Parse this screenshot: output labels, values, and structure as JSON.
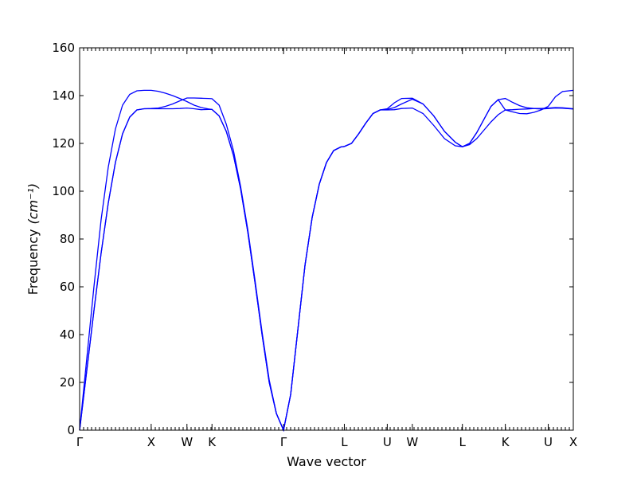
{
  "chart_data": {
    "type": "line",
    "title": "",
    "xlabel": "Wave vector",
    "ylabel": "Frequency",
    "ylabel_unit": "(cm⁻¹)",
    "ylim": [
      0,
      160
    ],
    "yticks": [
      0,
      20,
      40,
      60,
      80,
      100,
      120,
      140,
      160
    ],
    "xlim": [
      0,
      6.9
    ],
    "grid": false,
    "legend": "none",
    "line_color": "#0000ff",
    "high_symmetry_points": [
      {
        "label": "Γ",
        "x": 0.0
      },
      {
        "label": "X",
        "x": 1.0
      },
      {
        "label": "W",
        "x": 1.5
      },
      {
        "label": "K",
        "x": 1.85
      },
      {
        "label": "Γ",
        "x": 2.85
      },
      {
        "label": "L",
        "x": 3.7
      },
      {
        "label": "U",
        "x": 4.3
      },
      {
        "label": "W",
        "x": 4.65
      },
      {
        "label": "L",
        "x": 5.35
      },
      {
        "label": "K",
        "x": 5.95
      },
      {
        "label": "U",
        "x": 6.55
      },
      {
        "label": "X",
        "x": 6.9
      }
    ],
    "series": [
      {
        "x": [
          0,
          0.1,
          0.2,
          0.3,
          0.4,
          0.5,
          0.6,
          0.7,
          0.8,
          0.9,
          1.0,
          1.1,
          1.2,
          1.3,
          1.4,
          1.5,
          1.6,
          1.7,
          1.8,
          1.85,
          1.95,
          2.05,
          2.15,
          2.25,
          2.35,
          2.45,
          2.55,
          2.65,
          2.75,
          2.85,
          2.95,
          3.05,
          3.15,
          3.25,
          3.35,
          3.45,
          3.55,
          3.65,
          3.7,
          3.8,
          3.9,
          4.0,
          4.1,
          4.2,
          4.3,
          4.4,
          4.5,
          4.65,
          4.8,
          4.95,
          5.1,
          5.25,
          5.35,
          5.45,
          5.55,
          5.65,
          5.75,
          5.85,
          5.95,
          6.05,
          6.15,
          6.25,
          6.35,
          6.45,
          6.55,
          6.65,
          6.75,
          6.9
        ],
        "values": [
          0,
          25,
          50,
          74,
          95,
          112,
          124,
          131,
          134,
          134.5,
          134.5,
          134.5,
          134.5,
          134.5,
          134.6,
          134.8,
          134.5,
          134.1,
          134.2,
          134.2,
          131.5,
          125,
          115,
          101,
          83,
          62,
          40,
          20,
          7,
          0,
          15,
          42,
          69,
          89,
          103,
          112,
          117,
          118.5,
          118.7,
          120,
          124,
          128.5,
          132.5,
          134,
          134,
          134.1,
          134.6,
          134.8,
          132.5,
          127.5,
          122,
          119,
          118.6,
          119.5,
          122,
          125.5,
          129,
          132,
          134,
          134.1,
          134.3,
          134.4,
          134.6,
          134.6,
          134.8,
          135,
          134.9,
          134.5
        ]
      },
      {
        "x": [
          0,
          0.1,
          0.2,
          0.3,
          0.4,
          0.5,
          0.6,
          0.7,
          0.8,
          0.9,
          1.0,
          1.1,
          1.2,
          1.3,
          1.4,
          1.5,
          1.6,
          1.7,
          1.8,
          1.85,
          1.95,
          2.05,
          2.15,
          2.25,
          2.35,
          2.45,
          2.55,
          2.65,
          2.75,
          2.85,
          2.95,
          3.05,
          3.15,
          3.25,
          3.35,
          3.45,
          3.55,
          3.65,
          3.7,
          3.8,
          3.9,
          4.0,
          4.1,
          4.2,
          4.3,
          4.4,
          4.5,
          4.65,
          4.8,
          4.95,
          5.1,
          5.25,
          5.35,
          5.45,
          5.55,
          5.65,
          5.75,
          5.85,
          5.95,
          6.05,
          6.15,
          6.25,
          6.35,
          6.45,
          6.55,
          6.65,
          6.75,
          6.9
        ],
        "values": [
          0,
          25,
          50,
          74,
          95,
          112,
          124,
          131,
          134,
          134.5,
          134.6,
          134.8,
          135.5,
          136.5,
          137.8,
          139,
          139,
          138.9,
          138.8,
          138.7,
          136,
          128,
          117,
          102,
          84,
          63,
          41,
          21,
          7,
          0,
          15,
          42,
          69,
          89,
          103,
          112,
          117,
          118.5,
          118.7,
          120,
          124,
          128.5,
          132.5,
          134,
          134.2,
          135,
          136.5,
          138.5,
          136.5,
          131.5,
          125,
          120.5,
          118.6,
          120,
          124.5,
          130,
          135.5,
          138.3,
          138.8,
          137.2,
          135.8,
          134.9,
          134.6,
          134.4,
          134.6,
          134.8,
          134.7,
          134.4
        ]
      },
      {
        "x": [
          0,
          0.1,
          0.2,
          0.3,
          0.4,
          0.5,
          0.6,
          0.7,
          0.8,
          0.9,
          1.0,
          1.1,
          1.2,
          1.3,
          1.4,
          1.5,
          1.6,
          1.7,
          1.8,
          1.85,
          1.95,
          2.05,
          2.15,
          2.25,
          2.35,
          2.45,
          2.55,
          2.65,
          2.75,
          2.85,
          2.95,
          3.05,
          3.15,
          3.25,
          3.35,
          3.45,
          3.55,
          3.65,
          3.7,
          3.8,
          3.9,
          4.0,
          4.1,
          4.2,
          4.3,
          4.4,
          4.5,
          4.65,
          4.8,
          4.95,
          5.1,
          5.25,
          5.35,
          5.45,
          5.55,
          5.65,
          5.75,
          5.85,
          5.95,
          6.05,
          6.15,
          6.25,
          6.35,
          6.45,
          6.55,
          6.65,
          6.75,
          6.9
        ],
        "values": [
          0,
          30,
          60,
          88,
          110,
          126,
          136,
          140.5,
          142,
          142.2,
          142.2,
          141.8,
          141,
          140,
          138.8,
          137.5,
          136,
          135,
          134.4,
          134.2,
          131.5,
          125,
          115,
          101,
          83,
          62,
          40,
          20,
          7,
          0,
          15,
          42,
          69,
          89,
          103,
          112,
          117,
          118.5,
          118.7,
          120,
          124,
          128.5,
          132.5,
          134,
          134.5,
          137,
          138.8,
          138.9,
          136.5,
          131.5,
          125,
          120.5,
          118.6,
          120,
          124.5,
          130,
          135.5,
          138.3,
          134,
          133.2,
          132.5,
          132.4,
          133,
          134,
          135.5,
          139.5,
          141.7,
          142.2
        ]
      }
    ]
  }
}
